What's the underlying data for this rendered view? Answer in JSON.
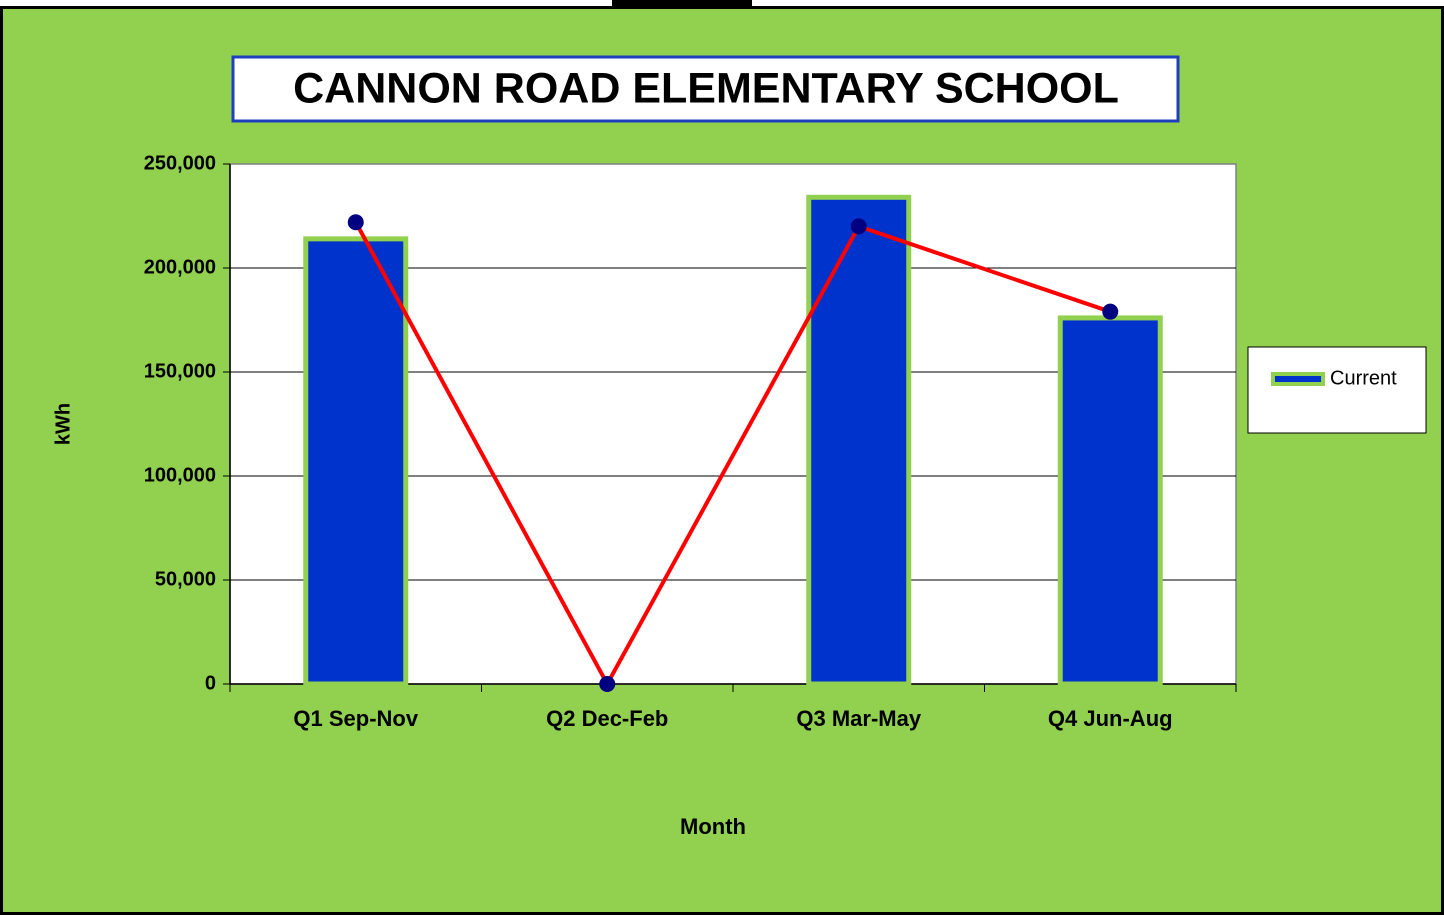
{
  "chart_data": {
    "type": "bar",
    "title": "CANNON ROAD ELEMENTARY SCHOOL",
    "xlabel": "Month",
    "ylabel": "kWh",
    "categories": [
      "Q1 Sep-Nov",
      "Q2 Dec-Feb",
      "Q3 Mar-May",
      "Q4 Jun-Aug"
    ],
    "series": [
      {
        "name": "Current",
        "type": "bar",
        "color": "#0033cc",
        "edge_color": "#92d050",
        "values": [
          214000,
          0,
          234000,
          176000
        ]
      },
      {
        "type": "line",
        "color": "#ff0000",
        "marker_color": "#000080",
        "values": [
          222000,
          0,
          220000,
          179000
        ]
      }
    ],
    "ylim": [
      0,
      250000
    ],
    "yticks": [
      0,
      {
        "value": 50000,
        "label": "50,000"
      },
      {
        "value": 100000,
        "label": "100,000"
      },
      {
        "value": 150000,
        "label": "150,000"
      },
      {
        "value": 200000,
        "label": "200,000"
      },
      {
        "value": 250000,
        "label": "250,000"
      }
    ],
    "grid": true,
    "legend": "right"
  }
}
